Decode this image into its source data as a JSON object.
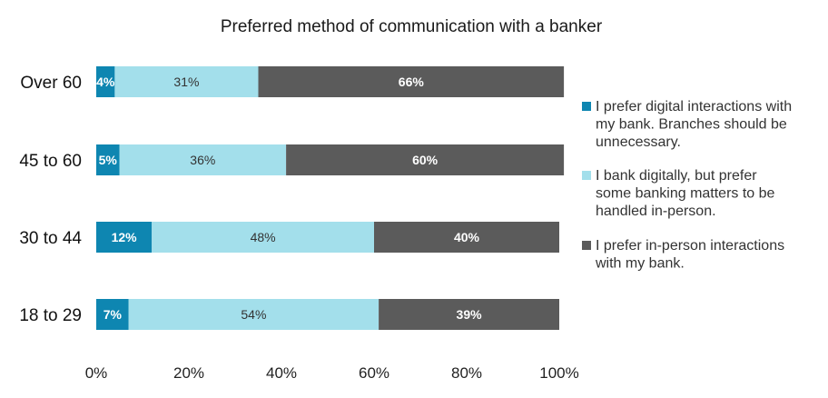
{
  "chart_data": {
    "type": "bar",
    "orientation": "horizontal",
    "stacked": true,
    "title": "Preferred method of communication with a banker",
    "categories": [
      "Over 60",
      "45 to 60",
      "30 to 44",
      "18 to 29"
    ],
    "series": [
      {
        "name": "I prefer digital interactions with my bank. Branches should be unnecessary.",
        "legend_lines": [
          "I prefer digital interactions with",
          "my bank. Branches should be",
          "unnecessary."
        ],
        "values": [
          4,
          5,
          12,
          7
        ],
        "labels": [
          "4%",
          "5%",
          "12%",
          "7%"
        ],
        "color": "#0e86b1",
        "label_color": "#ffffff",
        "label_bold": true
      },
      {
        "name": "I bank digitally, but prefer some banking matters to be handled in-person.",
        "legend_lines": [
          "I bank digitally, but prefer",
          "some banking matters to be",
          "handled in-person."
        ],
        "values": [
          31,
          36,
          48,
          54
        ],
        "labels": [
          "31%",
          "36%",
          "48%",
          "54%"
        ],
        "color": "#a3dfeb",
        "label_color": "#333333",
        "label_bold": false
      },
      {
        "name": "I prefer in-person interactions with my bank.",
        "legend_lines": [
          "I prefer in-person interactions",
          "with my bank."
        ],
        "values": [
          66,
          60,
          40,
          39
        ],
        "labels": [
          "66%",
          "60%",
          "40%",
          "39%"
        ],
        "color": "#5b5b5b",
        "label_color": "#ffffff",
        "label_bold": true
      }
    ],
    "xlim": [
      0,
      100
    ],
    "xticks": [
      "0%",
      "20%",
      "40%",
      "60%",
      "80%",
      "100%"
    ],
    "grid": false,
    "legend_position": "right"
  }
}
